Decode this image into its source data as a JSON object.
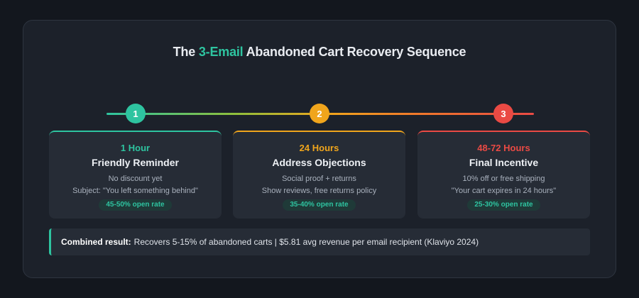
{
  "title": {
    "prefix": "The ",
    "accent": "3-Email",
    "suffix": " Abandoned Cart Recovery Sequence"
  },
  "colors": {
    "step1": "#2ec4a0",
    "step2": "#f0a51c",
    "step3": "#ea4a44"
  },
  "steps": [
    {
      "number": "1",
      "timing": "1 Hour",
      "heading": "Friendly Reminder",
      "line1": "No discount yet",
      "line2": "Subject: \"You left something behind\"",
      "open_rate": "45-50% open rate"
    },
    {
      "number": "2",
      "timing": "24 Hours",
      "heading": "Address Objections",
      "line1": "Social proof + returns",
      "line2": "Show reviews, free returns policy",
      "open_rate": "35-40% open rate"
    },
    {
      "number": "3",
      "timing": "48-72 Hours",
      "heading": "Final Incentive",
      "line1": "10% off or free shipping",
      "line2": "\"Your cart expires in 24 hours\"",
      "open_rate": "25-30% open rate"
    }
  ],
  "result": {
    "label": "Combined result:",
    "text": "Recovers 5-15% of abandoned carts | $5.81 avg revenue per email recipient (Klaviyo 2024)"
  }
}
